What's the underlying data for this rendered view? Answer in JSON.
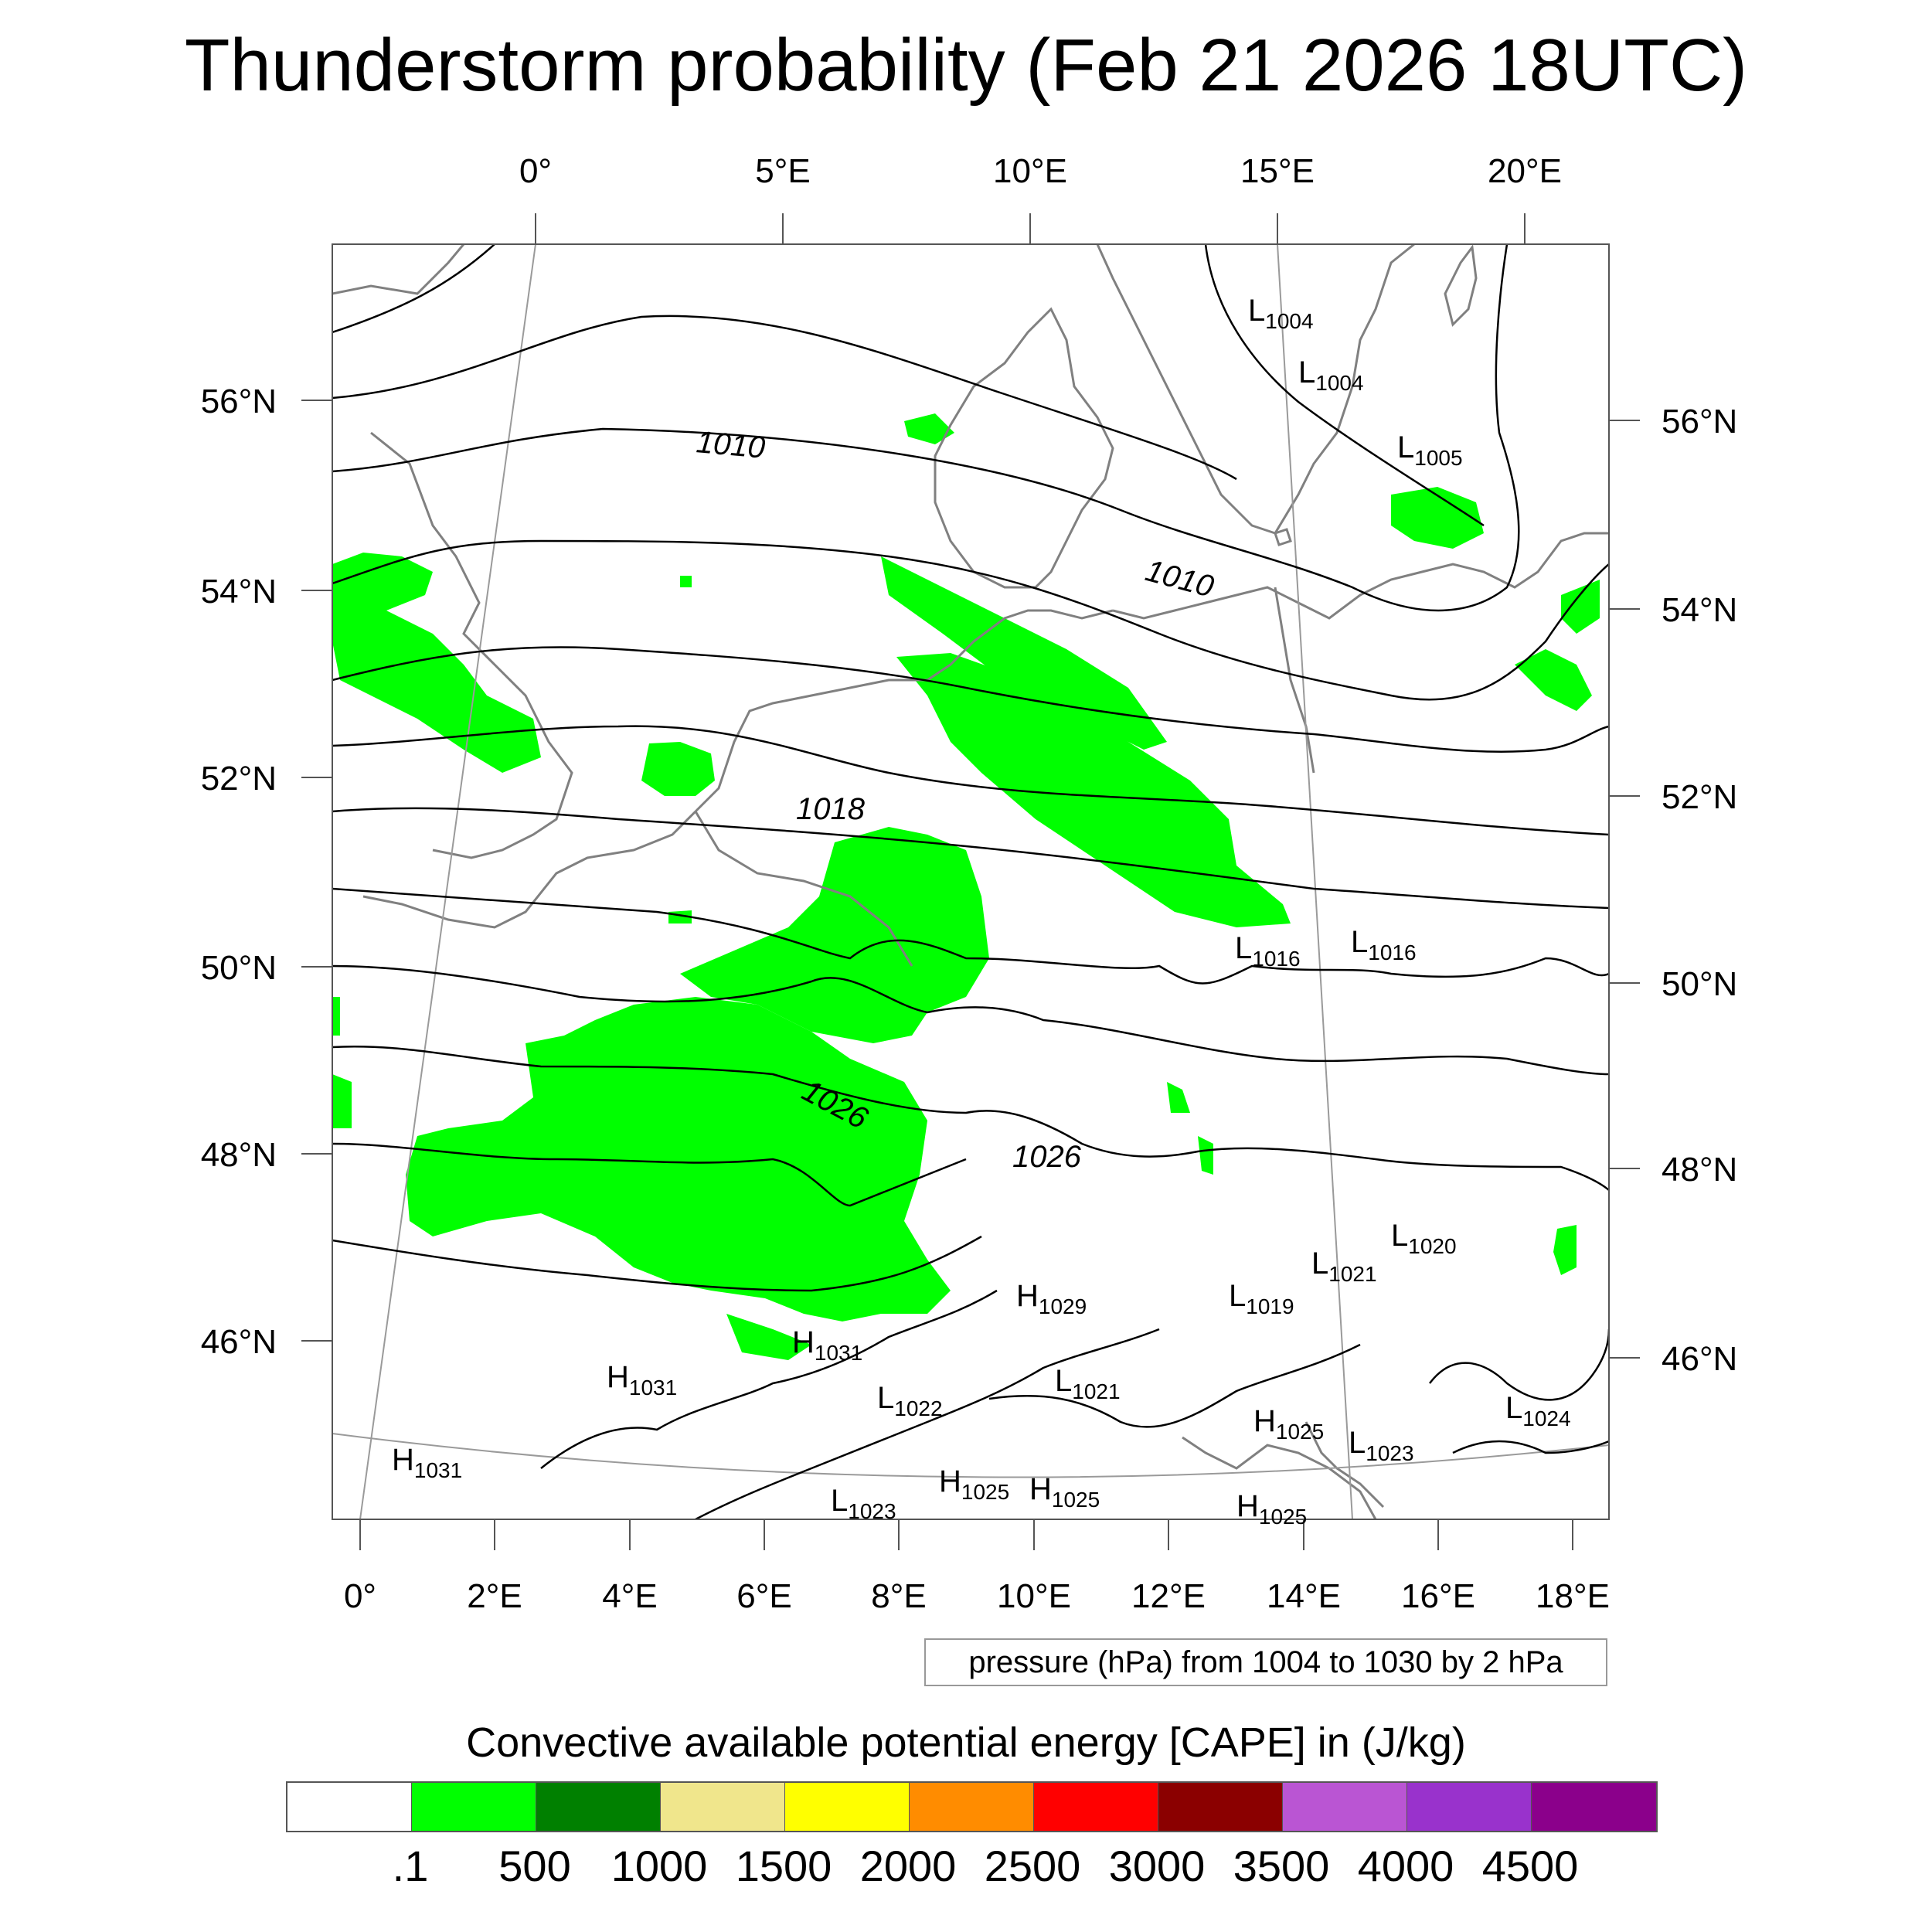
{
  "title": "Thunderstorm probability (Feb 21 2026 18UTC)",
  "colors": {
    "coast": "#808080",
    "isobar": "#000000",
    "graticule": "#9a9a9a",
    "cape_low": "#00ff00"
  },
  "top_lon_labels": [
    "0°",
    "5°E",
    "10°E",
    "15°E",
    "20°E"
  ],
  "bottom_lon_labels": [
    "0°",
    "2°E",
    "4°E",
    "6°E",
    "8°E",
    "10°E",
    "12°E",
    "14°E",
    "16°E",
    "18°E"
  ],
  "left_lat_labels": [
    "56°N",
    "54°N",
    "52°N",
    "50°N",
    "48°N",
    "46°N"
  ],
  "right_lat_labels": [
    "56°N",
    "54°N",
    "52°N",
    "50°N",
    "48°N",
    "46°N"
  ],
  "isobar_labels": [
    "1010",
    "1010",
    "1018",
    "1026",
    "1026"
  ],
  "pressure_centers": [
    {
      "type": "L",
      "value": "1004"
    },
    {
      "type": "L",
      "value": "1004"
    },
    {
      "type": "L",
      "value": "1005"
    },
    {
      "type": "L",
      "value": "1016"
    },
    {
      "type": "L",
      "value": "1016"
    },
    {
      "type": "L",
      "value": "1020"
    },
    {
      "type": "L",
      "value": "1021"
    },
    {
      "type": "L",
      "value": "1019"
    },
    {
      "type": "H",
      "value": "1029"
    },
    {
      "type": "H",
      "value": "1031"
    },
    {
      "type": "H",
      "value": "1031"
    },
    {
      "type": "L",
      "value": "1022"
    },
    {
      "type": "L",
      "value": "1021"
    },
    {
      "type": "H",
      "value": "1031"
    },
    {
      "type": "H",
      "value": "1025"
    },
    {
      "type": "L",
      "value": "1023"
    },
    {
      "type": "L",
      "value": "1024"
    },
    {
      "type": "H",
      "value": "1025"
    },
    {
      "type": "H",
      "value": "1025"
    },
    {
      "type": "L",
      "value": "1023"
    },
    {
      "type": "H",
      "value": "1025"
    }
  ],
  "pressure_note": "pressure (hPa) from 1004 to 1030 by 2 hPa",
  "cape_title": "Convective available potential energy [CAPE] in (J/kg)",
  "colorbar": {
    "colors": [
      "#ffffff",
      "#00ff00",
      "#008000",
      "#f0e68c",
      "#ffff00",
      "#ff8c00",
      "#ff0000",
      "#8b0000",
      "#ba55d3",
      "#9932cc",
      "#8b008b"
    ],
    "labels": [
      ".1",
      "500",
      "1000",
      "1500",
      "2000",
      "2500",
      "3000",
      "3500",
      "4000",
      "4500"
    ]
  }
}
